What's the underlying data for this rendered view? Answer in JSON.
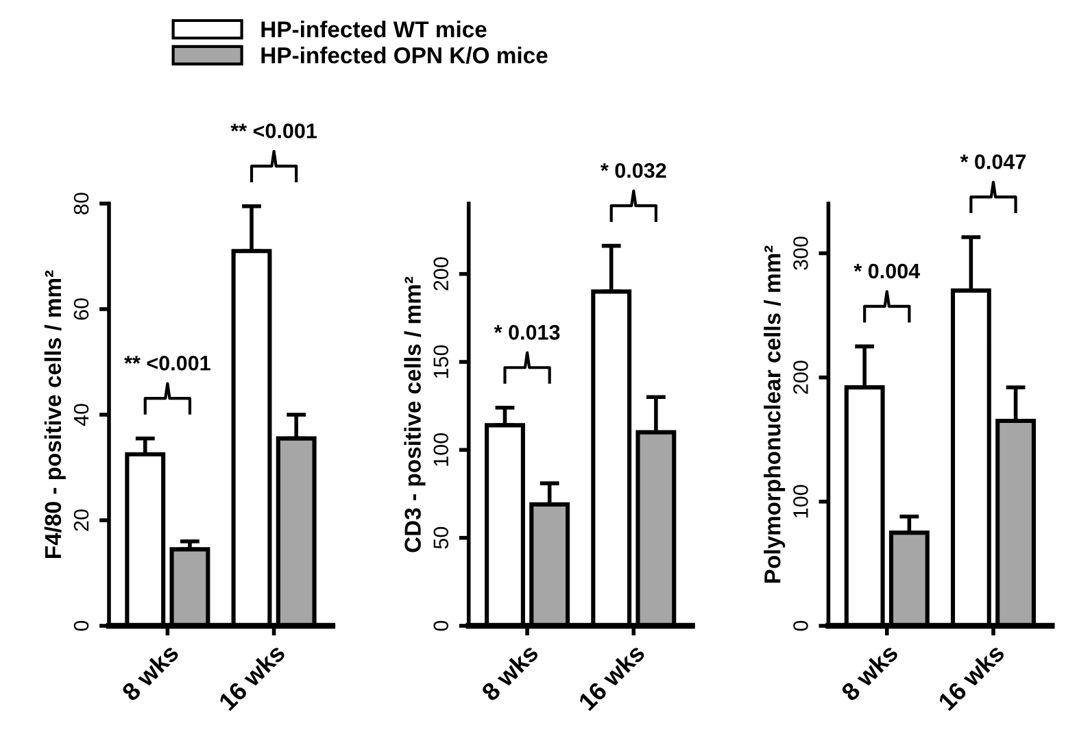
{
  "chart_data": [
    {
      "type": "bar",
      "ylabel": "F4/80 - positive cells / mm²",
      "categories": [
        "8 wks",
        "16 wks"
      ],
      "ylim": [
        0,
        80
      ],
      "yticks": [
        0,
        20,
        40,
        60,
        80
      ],
      "legend": "top right",
      "grid": false,
      "series": [
        {
          "name": "HP-infected WT mice",
          "color": "#ffffff",
          "values": [
            32.5,
            71
          ],
          "errors": [
            [
              32.5,
              35.5
            ],
            [
              71,
              79.5
            ]
          ]
        },
        {
          "name": "HP-infected OPN K/O mice",
          "color": "#a6a6a6",
          "values": [
            14.5,
            35.5
          ],
          "errors": [
            [
              14.5,
              16
            ],
            [
              35.5,
              40
            ]
          ]
        }
      ],
      "annotations": [
        "** <0.001",
        "** <0.001"
      ]
    },
    {
      "type": "bar",
      "ylabel": "CD3 - positive cells / mm²",
      "categories": [
        "8 wks",
        "16 wks"
      ],
      "ylim": [
        0,
        240
      ],
      "yticks": [
        0,
        50,
        100,
        150,
        200
      ],
      "grid": false,
      "series": [
        {
          "color": "#ffffff",
          "values": [
            114,
            190
          ],
          "errors": [
            [
              114,
              124
            ],
            [
              190,
              216
            ]
          ]
        },
        {
          "color": "#a6a6a6",
          "values": [
            69,
            110
          ],
          "errors": [
            [
              69,
              81
            ],
            [
              110,
              130
            ]
          ]
        }
      ],
      "annotations": [
        "* 0.013",
        "* 0.032"
      ]
    },
    {
      "type": "bar",
      "ylabel": "Polymorphonuclear cells / mm²",
      "categories": [
        "8 wks",
        "16 wks"
      ],
      "ylim": [
        0,
        340
      ],
      "yticks": [
        0,
        100,
        200,
        300
      ],
      "grid": false,
      "series": [
        {
          "color": "#ffffff",
          "values": [
            192,
            270
          ],
          "errors": [
            [
              192,
              225
            ],
            [
              270,
              313
            ]
          ]
        },
        {
          "color": "#a6a6a6",
          "values": [
            75,
            165
          ],
          "errors": [
            [
              75,
              88
            ],
            [
              165,
              192
            ]
          ]
        }
      ],
      "annotations": [
        "* 0.004",
        "* 0.047"
      ]
    }
  ]
}
